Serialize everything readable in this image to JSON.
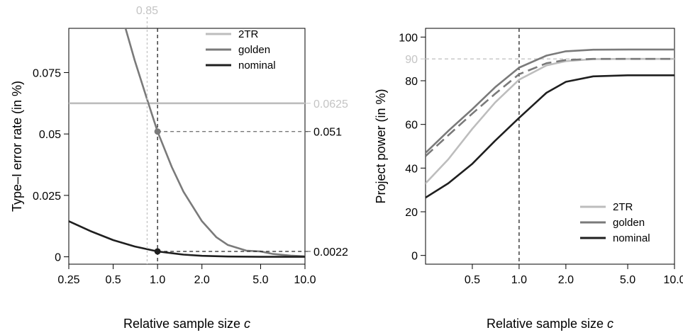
{
  "colors": {
    "2TR": "#bdbdbd",
    "golden": "#7a7a7a",
    "nominal": "#1f1f1f",
    "ref_light": "#c4c4c4",
    "ref_dark": "#222222",
    "ref_mid": "#777777"
  },
  "chart_data": [
    {
      "type": "line",
      "xlabel": "Relative sample size c",
      "ylabel": "Type–I error rate (in %)",
      "x_scale": "log",
      "xlim": [
        0.25,
        10
      ],
      "ylim": [
        -0.003,
        0.093
      ],
      "x_ticks": [
        0.25,
        0.5,
        1.0,
        2.0,
        5.0,
        10.0
      ],
      "x_tick_labels": [
        "0.25",
        "0.5",
        "1.0",
        "2.0",
        "5.0",
        "10.0"
      ],
      "y_ticks": [
        0,
        0.025,
        0.05,
        0.075
      ],
      "y_tick_labels": [
        "0",
        "0.025",
        "0.05",
        "0.075"
      ],
      "legend": {
        "position": "top-right",
        "entries": [
          "2TR",
          "golden",
          "nominal"
        ]
      },
      "series": [
        {
          "name": "2TR",
          "x": [
            0.25,
            10
          ],
          "y": [
            0.0625,
            0.0625
          ]
        },
        {
          "name": "golden",
          "x": [
            0.6,
            0.7,
            0.85,
            1.0,
            1.25,
            1.5,
            2.0,
            2.5,
            3.0,
            4.0,
            5.0,
            6.0,
            8.0,
            10.0
          ],
          "y": [
            0.094,
            0.08,
            0.064,
            0.051,
            0.0365,
            0.0265,
            0.0145,
            0.008,
            0.0048,
            0.0025,
            0.0022,
            0.0012,
            0.0005,
            0.0002
          ]
        },
        {
          "name": "nominal",
          "x": [
            0.25,
            0.35,
            0.5,
            0.7,
            1.0,
            1.5,
            2.0,
            3.0,
            5.0,
            10.0
          ],
          "y": [
            0.0145,
            0.0105,
            0.0068,
            0.0042,
            0.0022,
            0.0009,
            0.0004,
            0.0001,
            0.0,
            0.0
          ]
        }
      ],
      "reference_lines": [
        {
          "orientation": "vertical",
          "x": 0.85,
          "style": "light-dotted"
        },
        {
          "orientation": "vertical",
          "x": 1.0,
          "style": "dark-dashed"
        },
        {
          "orientation": "horizontal",
          "y": 0.051,
          "from_x": 1.0,
          "style": "mid-dashed"
        },
        {
          "orientation": "horizontal",
          "y": 0.0022,
          "from_x": 1.0,
          "style": "dark-dashed"
        }
      ],
      "points": [
        {
          "x": 1.0,
          "y": 0.051,
          "series": "golden"
        },
        {
          "x": 1.0,
          "y": 0.0022,
          "series": "nominal"
        }
      ],
      "annotations": [
        {
          "text": "0.85",
          "x": 0.85,
          "position": "above-plot"
        },
        {
          "text": "0.0625",
          "y": 0.0625,
          "position": "right"
        },
        {
          "text": "0.051",
          "y": 0.051,
          "position": "right"
        },
        {
          "text": "0.0022",
          "y": 0.0022,
          "position": "right"
        }
      ]
    },
    {
      "type": "line",
      "xlabel": "Relative sample size c",
      "ylabel": "Project power (in %)",
      "x_scale": "log",
      "xlim": [
        0.25,
        10
      ],
      "ylim": [
        -4,
        104
      ],
      "x_ticks": [
        0.5,
        1.0,
        2.0,
        5.0,
        10.0
      ],
      "x_tick_labels": [
        "0.5",
        "1.0",
        "2.0",
        "5.0",
        "10.0"
      ],
      "y_ticks": [
        0,
        20,
        40,
        60,
        80,
        90,
        100
      ],
      "y_tick_labels": [
        "0",
        "20",
        "40",
        "60",
        "80",
        "90",
        "100"
      ],
      "legend": {
        "position": "bottom-right",
        "entries": [
          "2TR",
          "golden",
          "nominal"
        ]
      },
      "series": [
        {
          "name": "2TR",
          "x": [
            0.25,
            0.35,
            0.5,
            0.7,
            1.0,
            1.5,
            2.0,
            3.0,
            5.0,
            10.0
          ],
          "y": [
            33,
            44,
            58,
            70,
            80.5,
            87,
            89,
            89.9,
            90,
            90
          ]
        },
        {
          "name": "golden",
          "x": [
            0.25,
            0.35,
            0.5,
            0.7,
            1.0,
            1.5,
            2.0,
            3.0,
            5.0,
            10.0
          ],
          "y": [
            47,
            57,
            67,
            77,
            86,
            91.5,
            93.5,
            94.2,
            94.3,
            94.3
          ]
        },
        {
          "name": "nominal",
          "x": [
            0.25,
            0.35,
            0.5,
            0.7,
            1.0,
            1.5,
            2.0,
            3.0,
            5.0,
            10.0
          ],
          "y": [
            26.5,
            33,
            42,
            52.5,
            63,
            74.5,
            79.5,
            82,
            82.5,
            82.5
          ]
        },
        {
          "x": [
            0.25,
            0.35,
            0.5,
            0.7,
            1.0,
            1.5,
            2.0,
            3.0,
            5.0,
            10.0
          ],
          "y": [
            45.5,
            55,
            65,
            74,
            83,
            88,
            89.5,
            90,
            90,
            90
          ],
          "style": "dashed"
        }
      ],
      "reference_lines": [
        {
          "orientation": "vertical",
          "x": 1.0,
          "style": "dark-dashed"
        },
        {
          "orientation": "horizontal",
          "y": 90,
          "style": "light-dashed"
        }
      ]
    }
  ]
}
